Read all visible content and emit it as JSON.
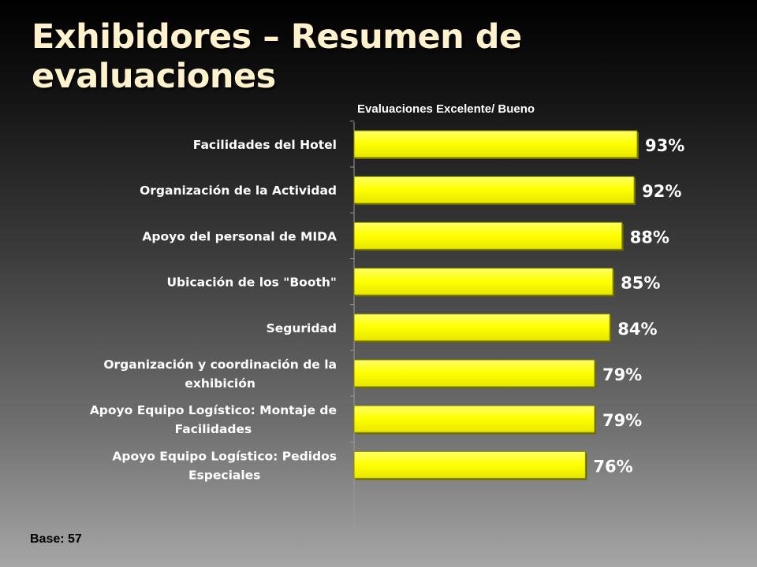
{
  "slide": {
    "title": "Exhibidores – Resumen de evaluaciones",
    "base_note": "Base: 57"
  },
  "colors": {
    "bar_fill": "#FFFF00",
    "bar_edge": "#6b6b00",
    "title_color": "#FFF2CC",
    "label_color": "#FFFFFF"
  },
  "chart_data": {
    "type": "bar",
    "orientation": "horizontal",
    "title": "Evaluaciones Excelente/ Bueno",
    "categories": [
      "Facilidades del Hotel",
      "Organización de la Actividad",
      "Apoyo del personal de MIDA",
      "Ubicación de los \"Booth\"",
      "Seguridad",
      "Organización y coordinación de la exhibición",
      "Apoyo Equipo Logístico: Montaje de Facilidades",
      "Apoyo Equipo Logístico: Pedidos Especiales"
    ],
    "category_lines": [
      [
        "Facilidades del Hotel"
      ],
      [
        "Organización de la Actividad"
      ],
      [
        "Apoyo del personal de MIDA"
      ],
      [
        "Ubicación de los \"Booth\""
      ],
      [
        "Seguridad"
      ],
      [
        "Organización y coordinación de la",
        "exhibición"
      ],
      [
        "Apoyo Equipo Logístico: Montaje de",
        "Facilidades"
      ],
      [
        "Apoyo Equipo Logístico: Pedidos",
        "Especiales"
      ]
    ],
    "values": [
      93,
      92,
      88,
      85,
      84,
      79,
      79,
      76
    ],
    "value_labels": [
      "93%",
      "92%",
      "88%",
      "85%",
      "84%",
      "79%",
      "79%",
      "76%"
    ],
    "xlim": [
      0,
      100
    ],
    "grid": false,
    "legend": "none"
  }
}
